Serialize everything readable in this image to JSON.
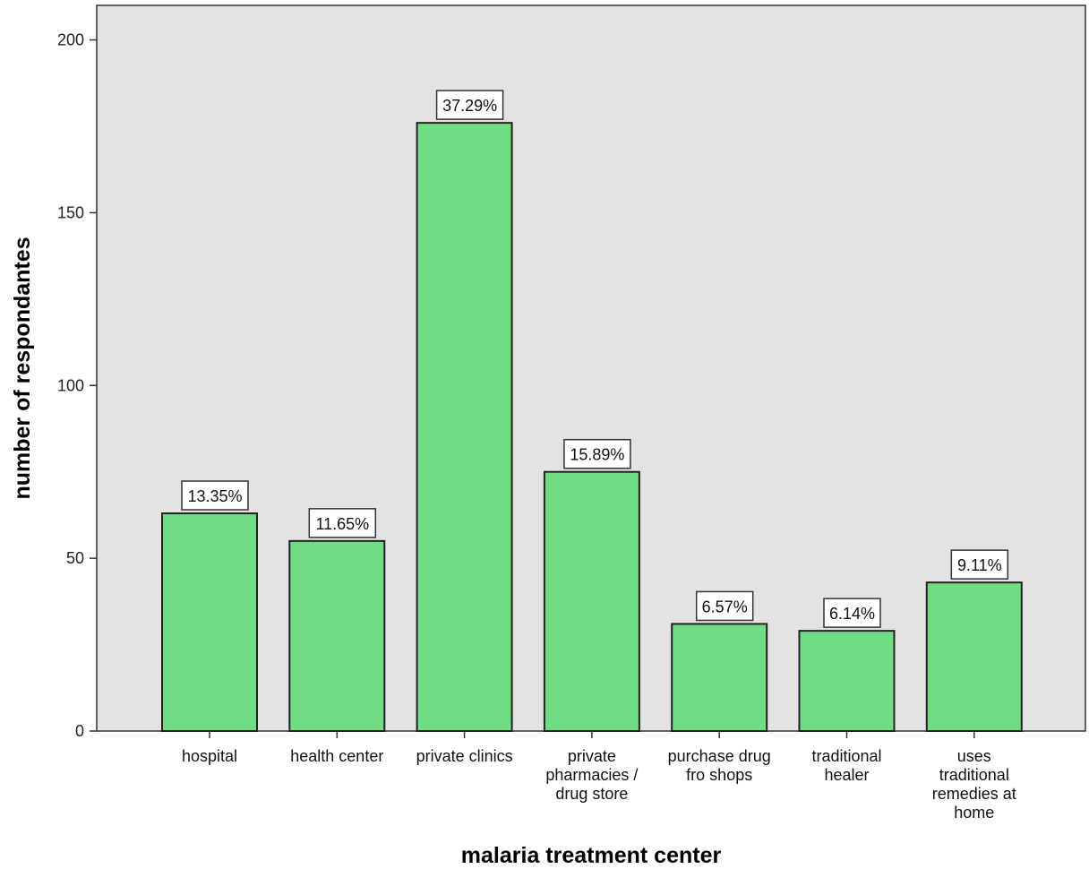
{
  "chart_data": {
    "type": "bar",
    "title": "",
    "xlabel": "malaria treatment center",
    "ylabel": "number of respondantes",
    "ylim": [
      0,
      210
    ],
    "yticks": [
      0,
      50,
      100,
      150,
      200
    ],
    "grid": false,
    "categories": [
      [
        "hospital"
      ],
      [
        "health center"
      ],
      [
        "private clinics"
      ],
      [
        "private",
        "pharmacies /",
        "drug store"
      ],
      [
        "purchase drug",
        "fro shops"
      ],
      [
        "traditional",
        "healer"
      ],
      [
        "uses",
        "traditional",
        "remedies at",
        "home"
      ]
    ],
    "values": [
      63,
      55,
      176,
      75,
      31,
      29,
      43
    ],
    "data_labels": [
      "13.35%",
      "11.65%",
      "37.29%",
      "15.89%",
      "6.57%",
      "6.14%",
      "9.11%"
    ],
    "colors": {
      "plot_background": "#e3e3e3",
      "bar_fill": "#70dc84",
      "bar_stroke": "#222222"
    }
  }
}
